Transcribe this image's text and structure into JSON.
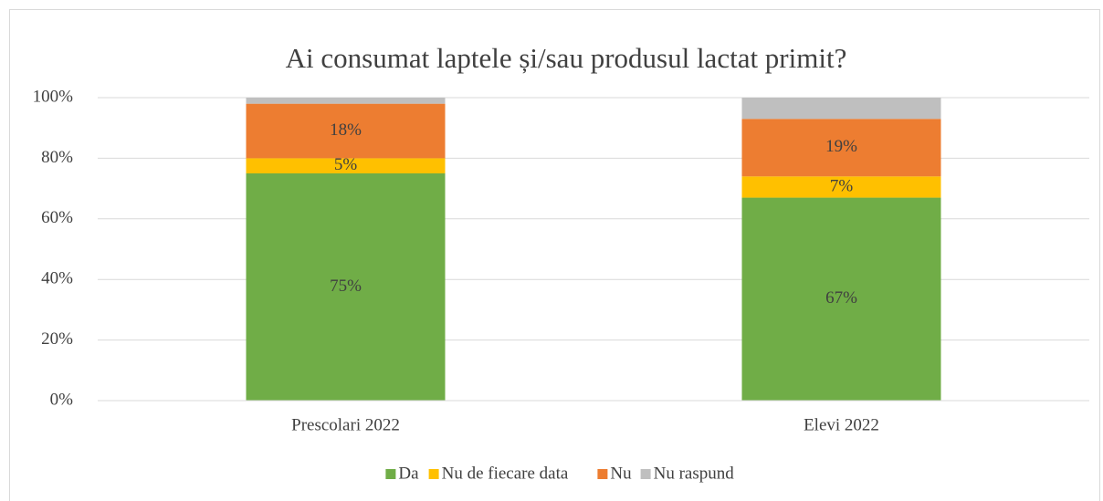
{
  "chart_data": {
    "type": "stacked_bar",
    "title": "Ai consumat laptele și/sau produsul lactat primit?",
    "categories": [
      "Prescolari 2022",
      "Elevi 2022"
    ],
    "series": [
      {
        "name": "Da",
        "color": "#70ad47",
        "values": [
          75,
          67
        ],
        "value_labels": [
          "75%",
          "67%"
        ]
      },
      {
        "name": "Nu de fiecare data",
        "color": "#ffc000",
        "values": [
          5,
          7
        ],
        "value_labels": [
          "5%",
          "7%"
        ]
      },
      {
        "name": "Nu",
        "color": "#ed7d31",
        "values": [
          18,
          19
        ],
        "value_labels": [
          "18%",
          "19%"
        ]
      },
      {
        "name": "Nu raspund",
        "color": "#bfbfbf",
        "values": [
          2,
          7
        ]
      }
    ],
    "ylim": [
      0,
      100
    ],
    "yticks": [
      {
        "value": 0,
        "label": "0%"
      },
      {
        "value": 20,
        "label": "20%"
      },
      {
        "value": 40,
        "label": "40%"
      },
      {
        "value": 60,
        "label": "60%"
      },
      {
        "value": 80,
        "label": "80%"
      },
      {
        "value": 100,
        "label": "100%"
      }
    ],
    "grid": true,
    "legend": "bottom"
  }
}
